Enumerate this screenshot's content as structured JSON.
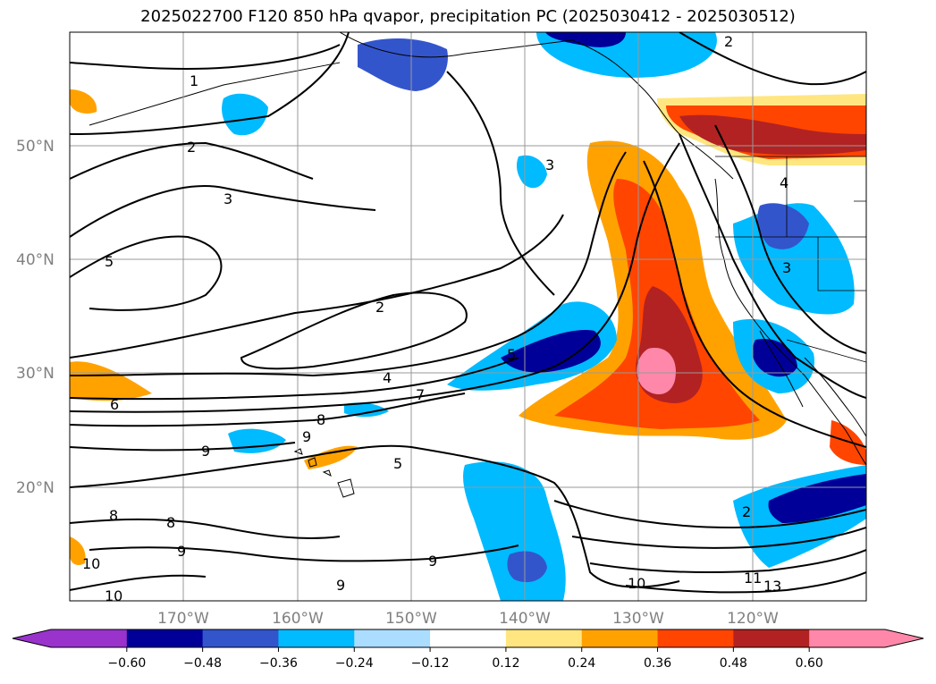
{
  "title": "2025022700 F120 850 hPa qvapor, precipitation PC (2025030412 - 2025030512)",
  "map": {
    "lon_labels": [
      "170°W",
      "160°W",
      "150°W",
      "140°W",
      "130°W",
      "120°W"
    ],
    "lat_labels": [
      "50°N",
      "40°N",
      "30°N",
      "20°N"
    ],
    "contour_labels": [
      "1",
      "2",
      "3",
      "5",
      "2",
      "4",
      "5",
      "6",
      "7",
      "8",
      "9",
      "9",
      "5",
      "8",
      "8",
      "9",
      "10",
      "10",
      "9",
      "9",
      "10",
      "11",
      "13",
      "2",
      "3",
      "3",
      "4",
      "2"
    ]
  },
  "colorbar": {
    "ticks": [
      "−0.60",
      "−0.48",
      "−0.36",
      "−0.24",
      "−0.12",
      "0.12",
      "0.24",
      "0.36",
      "0.48",
      "0.60"
    ],
    "colors": [
      "#9933cc",
      "#000099",
      "#3355cc",
      "#00bbff",
      "#aaddff",
      "#ffffff",
      "#ffe680",
      "#ffa200",
      "#ff4500",
      "#b22222",
      "#ff88aa"
    ]
  },
  "colors": {
    "negative_strong": "#000099",
    "negative": "#3355cc",
    "negative_light": "#00bbff",
    "negative_faint": "#aaddff",
    "positive_faint": "#ffe680",
    "positive": "#ffa200",
    "positive_strong": "#ff4500",
    "positive_dark": "#b22222",
    "positive_max": "#ff88aa"
  }
}
